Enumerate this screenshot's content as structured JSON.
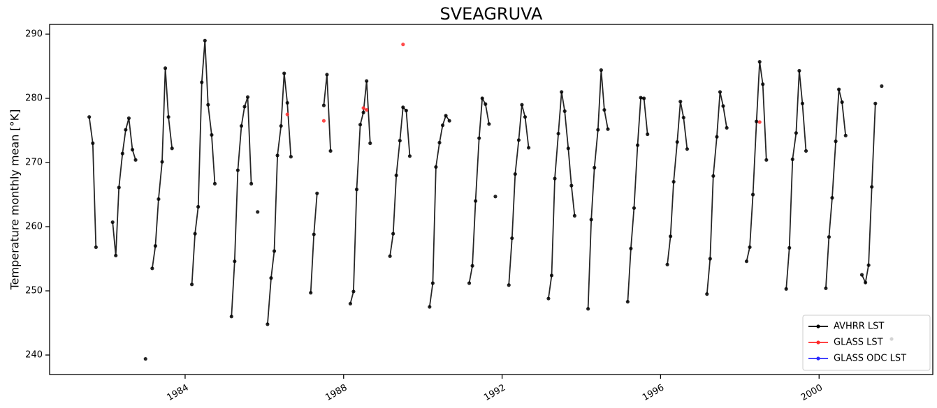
{
  "chart_data": {
    "type": "line",
    "title": "SVEAGRUVA",
    "y_label": "Temperature monthly mean [°K]",
    "xlim": [
      1980.58,
      2002.87
    ],
    "xticks": [
      1984,
      1988,
      1992,
      1996,
      2000
    ],
    "ylim": [
      236.96,
      291.52
    ],
    "yticks": [
      240,
      250,
      260,
      270,
      280,
      290
    ],
    "grid": false,
    "legend": "lower right",
    "series": [
      {
        "name": "AVHRR LST",
        "color": "#000000",
        "x": [
          1981.58,
          1981.67,
          1981.75,
          1981.83,
          1982.17,
          1982.25,
          1982.33,
          1982.42,
          1982.5,
          1982.58,
          1982.67,
          1982.75,
          1982.83,
          1983.0,
          1983.08,
          1983.17,
          1983.25,
          1983.33,
          1983.42,
          1983.5,
          1983.58,
          1983.67,
          1983.75,
          1984.17,
          1984.25,
          1984.33,
          1984.42,
          1984.5,
          1984.58,
          1984.67,
          1984.75,
          1984.83,
          1985.17,
          1985.25,
          1985.33,
          1985.42,
          1985.5,
          1985.58,
          1985.67,
          1985.75,
          1985.83,
          1985.92,
          1986.08,
          1986.17,
          1986.25,
          1986.33,
          1986.42,
          1986.5,
          1986.58,
          1986.67,
          1986.75,
          1987.17,
          1987.25,
          1987.33,
          1987.42,
          1987.5,
          1987.58,
          1987.67,
          1987.75,
          1988.17,
          1988.25,
          1988.33,
          1988.42,
          1988.5,
          1988.58,
          1988.67,
          1988.75,
          1989.17,
          1989.25,
          1989.33,
          1989.42,
          1989.5,
          1989.58,
          1989.67,
          1989.75,
          1990.17,
          1990.25,
          1990.33,
          1990.42,
          1990.5,
          1990.58,
          1990.67,
          1990.75,
          1991.17,
          1991.25,
          1991.33,
          1991.42,
          1991.5,
          1991.58,
          1991.67,
          1991.75,
          1991.83,
          1991.92,
          1992.17,
          1992.25,
          1992.33,
          1992.42,
          1992.5,
          1992.58,
          1992.67,
          1992.75,
          1993.17,
          1993.25,
          1993.33,
          1993.42,
          1993.5,
          1993.58,
          1993.67,
          1993.75,
          1993.83,
          1993.92,
          1994.17,
          1994.25,
          1994.33,
          1994.42,
          1994.5,
          1994.58,
          1994.67,
          1994.75,
          1995.17,
          1995.25,
          1995.33,
          1995.42,
          1995.5,
          1995.58,
          1995.67,
          1995.75,
          1996.17,
          1996.25,
          1996.33,
          1996.42,
          1996.5,
          1996.58,
          1996.67,
          1996.75,
          1997.17,
          1997.25,
          1997.33,
          1997.42,
          1997.5,
          1997.58,
          1997.67,
          1997.75,
          1998.17,
          1998.25,
          1998.33,
          1998.42,
          1998.5,
          1998.58,
          1998.67,
          1998.75,
          1999.17,
          1999.25,
          1999.33,
          1999.42,
          1999.5,
          1999.58,
          1999.67,
          1999.75,
          2000.17,
          2000.25,
          2000.33,
          2000.42,
          2000.5,
          2000.58,
          2000.67,
          2000.75,
          2001.08,
          2001.17,
          2001.25,
          2001.33,
          2001.42,
          2001.5,
          2001.58,
          2001.67,
          2001.83
        ],
        "values": [
          277.1,
          273,
          256.8,
          null,
          260.7,
          255.5,
          266.1,
          271.4,
          275.1,
          276.9,
          272,
          270.4,
          null,
          239.4,
          null,
          253.5,
          257,
          264.3,
          270.1,
          284.7,
          277.1,
          272.2,
          null,
          251,
          258.9,
          263.1,
          282.5,
          289,
          279,
          274.3,
          266.7,
          null,
          246,
          254.6,
          268.8,
          275.7,
          278.7,
          280.2,
          266.7,
          null,
          262.3,
          null,
          244.8,
          252,
          256.2,
          271.1,
          275.7,
          283.9,
          279.3,
          270.9,
          null,
          249.7,
          258.8,
          265.2,
          null,
          278.9,
          283.7,
          271.8,
          null,
          248,
          249.9,
          265.8,
          275.9,
          277.8,
          282.7,
          273,
          null,
          255.4,
          258.9,
          268,
          273.4,
          278.6,
          278.1,
          271,
          null,
          247.5,
          251.2,
          269.3,
          273.1,
          275.8,
          277.3,
          276.5,
          null,
          251.2,
          253.9,
          264,
          273.8,
          280,
          279.1,
          276,
          null,
          264.7,
          null,
          250.9,
          258.2,
          268.2,
          273.5,
          279,
          277.1,
          272.3,
          null,
          248.8,
          252.4,
          267.5,
          274.5,
          281,
          278,
          272.2,
          266.4,
          261.7,
          null,
          247.2,
          261.1,
          269.2,
          275.1,
          284.4,
          278.2,
          275.2,
          null,
          248.3,
          256.6,
          262.9,
          272.7,
          280.1,
          280,
          274.4,
          null,
          254.1,
          258.5,
          267,
          273.2,
          279.5,
          277,
          272.1,
          null,
          249.5,
          255,
          267.9,
          274,
          281,
          278.8,
          275.4,
          null,
          254.6,
          256.8,
          265,
          276.4,
          285.7,
          282.2,
          270.4,
          null,
          250.3,
          256.7,
          270.5,
          274.6,
          284.3,
          279.2,
          271.8,
          null,
          250.4,
          258.4,
          264.5,
          273.3,
          281.4,
          279.4,
          274.2,
          null,
          252.5,
          251.3,
          254,
          266.2,
          279.2,
          null,
          281.9,
          null,
          242.5
        ]
      },
      {
        "name": "GLASS LST",
        "color": "#ff2a2a",
        "x": [
          1986.58,
          1987.0,
          1987.5,
          1988.0,
          1988.5,
          1988.58,
          1989.0,
          1989.5,
          1990.0,
          1998.5
        ],
        "values": [
          277.5,
          null,
          276.5,
          null,
          278.5,
          278.2,
          null,
          288.4,
          null,
          276.3
        ]
      },
      {
        "name": "GLASS ODC LST",
        "color": "#2a2aff",
        "x": [],
        "values": []
      }
    ]
  }
}
